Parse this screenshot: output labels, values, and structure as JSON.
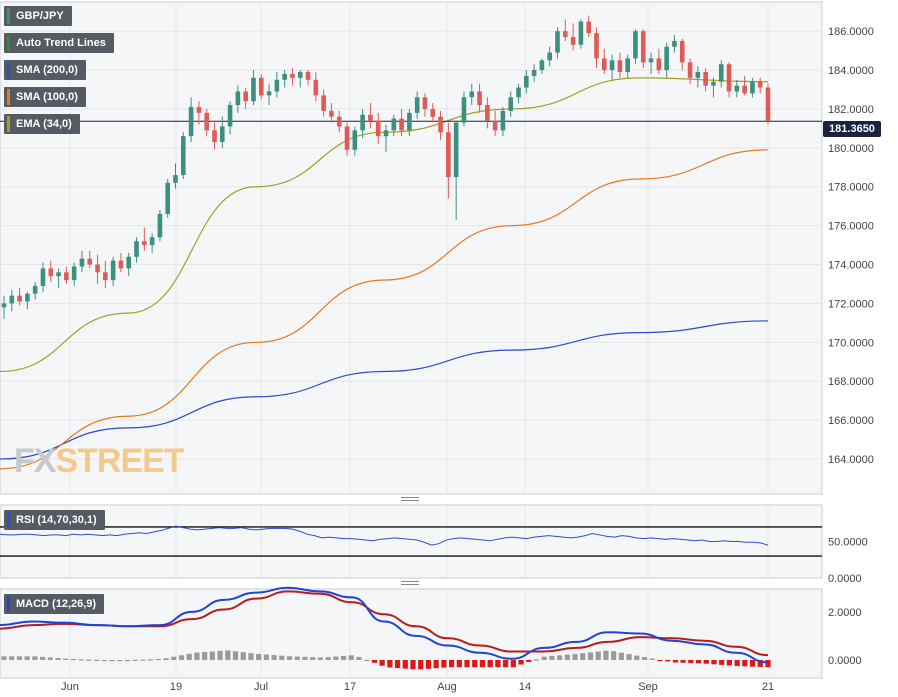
{
  "legend": {
    "symbol": "GBP/JPY",
    "trend": "Auto Trend Lines",
    "sma200": "SMA (200,0)",
    "sma100": "SMA (100,0)",
    "ema34": "EMA (34,0)"
  },
  "rsi_label": "RSI (14,70,30,1)",
  "macd_label": "MACD (12,26,9)",
  "price_badge": "181.3650",
  "logo": {
    "part1": "FX",
    "part2": "STREET"
  },
  "colors": {
    "up": "#3d8f7f",
    "down": "#e05a57",
    "sma200": "#2f4bd1",
    "sma100": "#e8781f",
    "ema34": "#a3a027",
    "trend": "#2e8b3e",
    "rsi": "#2f4bd1",
    "macd": "#1f44d6",
    "signal": "#b81c1c",
    "hist_pos": "#9a9a9a",
    "hist_neg": "#e01515",
    "grid": "#e4e6ea",
    "bg": "#f5f6f8"
  },
  "chart_data": [
    {
      "type": "candlestick",
      "title": "GBP/JPY",
      "y_ticks": [
        "186.0000",
        "184.0000",
        "182.0000",
        "180.0000",
        "178.0000",
        "176.0000",
        "174.0000",
        "172.0000",
        "170.0000",
        "168.0000",
        "166.0000",
        "164.0000"
      ],
      "ylim": [
        162.2,
        187.5
      ],
      "x_ticks": [
        "Jun",
        "19",
        "Jul",
        "17",
        "Aug",
        "14",
        "Sep",
        "21"
      ],
      "last_price": 181.365,
      "candles": [
        [
          171.8,
          172.4,
          171.2,
          172.0
        ],
        [
          172.0,
          172.7,
          171.6,
          172.4
        ],
        [
          172.4,
          172.8,
          171.9,
          172.1
        ],
        [
          172.1,
          172.6,
          171.7,
          172.5
        ],
        [
          172.5,
          173.1,
          172.2,
          172.9
        ],
        [
          172.9,
          174.1,
          172.6,
          173.8
        ],
        [
          173.8,
          174.2,
          173.1,
          173.4
        ],
        [
          173.4,
          173.8,
          172.8,
          173.6
        ],
        [
          173.6,
          173.9,
          173.0,
          173.2
        ],
        [
          173.2,
          174.1,
          172.9,
          173.9
        ],
        [
          173.9,
          174.7,
          173.6,
          174.3
        ],
        [
          174.3,
          174.7,
          173.8,
          174.0
        ],
        [
          174.0,
          174.5,
          173.0,
          173.6
        ],
        [
          173.6,
          174.2,
          172.8,
          173.2
        ],
        [
          173.2,
          174.4,
          172.9,
          174.2
        ],
        [
          174.2,
          174.6,
          173.6,
          173.8
        ],
        [
          173.8,
          174.6,
          173.4,
          174.4
        ],
        [
          174.4,
          175.4,
          174.1,
          175.2
        ],
        [
          175.2,
          175.9,
          174.7,
          175.0
        ],
        [
          175.0,
          175.6,
          174.6,
          175.4
        ],
        [
          175.4,
          176.8,
          175.2,
          176.6
        ],
        [
          176.6,
          178.4,
          176.4,
          178.2
        ],
        [
          178.2,
          179.2,
          177.9,
          178.6
        ],
        [
          178.6,
          180.8,
          178.4,
          180.6
        ],
        [
          180.6,
          182.6,
          180.3,
          182.1
        ],
        [
          182.1,
          182.4,
          181.2,
          181.8
        ],
        [
          181.8,
          182.0,
          180.6,
          180.9
        ],
        [
          180.9,
          181.3,
          179.9,
          180.3
        ],
        [
          180.3,
          181.6,
          180.0,
          181.1
        ],
        [
          181.1,
          182.4,
          180.7,
          182.2
        ],
        [
          182.2,
          183.2,
          181.8,
          182.9
        ],
        [
          182.9,
          183.1,
          182.0,
          182.4
        ],
        [
          182.4,
          184.0,
          182.2,
          183.6
        ],
        [
          183.6,
          183.8,
          182.5,
          182.7
        ],
        [
          182.7,
          183.3,
          182.2,
          182.9
        ],
        [
          182.9,
          183.9,
          182.6,
          183.5
        ],
        [
          183.5,
          184.0,
          183.1,
          183.8
        ],
        [
          183.8,
          184.1,
          183.2,
          183.6
        ],
        [
          183.6,
          184.0,
          183.1,
          183.9
        ],
        [
          183.9,
          184.0,
          183.2,
          183.5
        ],
        [
          183.5,
          183.9,
          182.4,
          182.7
        ],
        [
          182.7,
          183.0,
          181.6,
          181.9
        ],
        [
          181.9,
          182.3,
          181.3,
          181.6
        ],
        [
          181.6,
          181.9,
          180.8,
          181.1
        ],
        [
          181.1,
          181.3,
          179.6,
          179.9
        ],
        [
          179.9,
          181.1,
          179.6,
          180.9
        ],
        [
          180.9,
          182.0,
          180.5,
          181.7
        ],
        [
          181.7,
          182.3,
          181.0,
          181.4
        ],
        [
          181.4,
          181.8,
          180.2,
          180.6
        ],
        [
          180.6,
          181.2,
          179.8,
          180.9
        ],
        [
          180.9,
          181.7,
          180.6,
          181.5
        ],
        [
          181.5,
          182.0,
          180.6,
          180.9
        ],
        [
          180.9,
          182.0,
          180.6,
          181.8
        ],
        [
          181.8,
          182.9,
          181.5,
          182.6
        ],
        [
          182.6,
          182.8,
          181.6,
          182.0
        ],
        [
          182.0,
          182.3,
          181.3,
          181.6
        ],
        [
          181.6,
          181.9,
          180.4,
          180.8
        ],
        [
          180.8,
          181.3,
          177.4,
          178.5
        ],
        [
          178.5,
          181.4,
          176.3,
          181.3
        ],
        [
          181.3,
          182.9,
          181.1,
          182.6
        ],
        [
          182.6,
          183.3,
          182.2,
          182.9
        ],
        [
          182.9,
          183.3,
          181.8,
          182.2
        ],
        [
          182.2,
          182.6,
          181.0,
          181.4
        ],
        [
          181.4,
          181.9,
          180.6,
          180.9
        ],
        [
          180.9,
          182.1,
          180.6,
          181.9
        ],
        [
          181.9,
          182.9,
          181.6,
          182.6
        ],
        [
          182.6,
          183.3,
          182.3,
          183.1
        ],
        [
          183.1,
          184.0,
          182.8,
          183.7
        ],
        [
          183.7,
          184.3,
          183.4,
          184.0
        ],
        [
          184.0,
          184.6,
          183.8,
          184.5
        ],
        [
          184.5,
          185.2,
          184.2,
          184.9
        ],
        [
          184.9,
          186.2,
          184.6,
          186.0
        ],
        [
          186.0,
          186.6,
          185.5,
          185.7
        ],
        [
          185.7,
          186.4,
          185.0,
          185.3
        ],
        [
          185.3,
          186.6,
          185.1,
          186.5
        ],
        [
          186.5,
          186.8,
          185.7,
          185.9
        ],
        [
          185.9,
          186.2,
          184.1,
          184.6
        ],
        [
          184.6,
          185.1,
          183.8,
          184.0
        ],
        [
          184.0,
          184.8,
          183.5,
          184.5
        ],
        [
          184.5,
          184.9,
          183.6,
          183.9
        ],
        [
          183.9,
          184.8,
          183.6,
          184.6
        ],
        [
          184.6,
          186.1,
          184.3,
          186.0
        ],
        [
          186.0,
          186.1,
          184.1,
          184.4
        ],
        [
          184.4,
          184.9,
          183.8,
          184.6
        ],
        [
          184.6,
          185.1,
          183.8,
          184.0
        ],
        [
          184.0,
          185.4,
          183.6,
          185.2
        ],
        [
          185.2,
          185.8,
          184.9,
          185.5
        ],
        [
          185.5,
          185.6,
          184.0,
          184.4
        ],
        [
          184.4,
          184.6,
          183.3,
          183.6
        ],
        [
          183.6,
          184.2,
          183.1,
          183.9
        ],
        [
          183.9,
          184.1,
          182.9,
          183.2
        ],
        [
          183.2,
          183.6,
          182.6,
          183.4
        ],
        [
          183.4,
          184.5,
          183.1,
          184.3
        ],
        [
          184.3,
          184.4,
          182.6,
          182.9
        ],
        [
          182.9,
          183.5,
          182.6,
          183.2
        ],
        [
          183.2,
          183.7,
          182.7,
          182.8
        ],
        [
          182.8,
          183.6,
          182.6,
          183.4
        ],
        [
          183.4,
          183.6,
          182.8,
          183.1
        ],
        [
          183.1,
          183.3,
          181.2,
          181.4
        ]
      ],
      "series": [
        {
          "name": "SMA (200,0)",
          "values": [
            164.0,
            165.6,
            167.2,
            168.5,
            169.6,
            170.5,
            171.1
          ]
        },
        {
          "name": "SMA (100,0)",
          "values": [
            163.5,
            166.2,
            170.0,
            173.2,
            176.0,
            178.4,
            179.9
          ]
        },
        {
          "name": "EMA (34,0)",
          "values": [
            168.5,
            171.5,
            178.0,
            180.8,
            182.0,
            183.6,
            183.4
          ]
        }
      ]
    },
    {
      "type": "line",
      "title": "RSI (14,70,30,1)",
      "y_ticks": [
        "50.0000",
        "0.0000"
      ],
      "ylim": [
        0,
        100
      ],
      "overbought": 70,
      "oversold": 30,
      "values": [
        60,
        59,
        59,
        60,
        60,
        59,
        58,
        59,
        59,
        58,
        60,
        59,
        60,
        59,
        58,
        59,
        58,
        60,
        61,
        62,
        61,
        63,
        65,
        68,
        71,
        69,
        67,
        66,
        67,
        68,
        69,
        68,
        68,
        69,
        67,
        66,
        67,
        68,
        68,
        68,
        67,
        64,
        60,
        58,
        55,
        56,
        55,
        54,
        54,
        53,
        52,
        51,
        53,
        54,
        55,
        54,
        53,
        52,
        49,
        45,
        47,
        52,
        54,
        55,
        54,
        53,
        52,
        51,
        53,
        55,
        56,
        55,
        54,
        56,
        57,
        58,
        57,
        56,
        55,
        56,
        58,
        61,
        59,
        57,
        56,
        58,
        57,
        55,
        54,
        55,
        54,
        53,
        54,
        53,
        52,
        51,
        52,
        50,
        50,
        51,
        50,
        50,
        49,
        49,
        48,
        45
      ]
    },
    {
      "type": "bar",
      "title": "MACD (12,26,9)",
      "y_ticks": [
        "2.0000",
        "0.0000"
      ],
      "ylim": [
        -0.75,
        2.95
      ],
      "series": [
        {
          "name": "MACD",
          "values": [
            1.45,
            1.6,
            1.55,
            1.45,
            1.4,
            1.45,
            2.0,
            2.5,
            2.8,
            3.0,
            2.85,
            2.6,
            1.6,
            1.0,
            0.6,
            0.3,
            0.05,
            0.5,
            0.75,
            1.15,
            1.1,
            0.8,
            0.65,
            0.3,
            -0.1
          ]
        },
        {
          "name": "Signal",
          "values": [
            1.3,
            1.45,
            1.5,
            1.45,
            1.4,
            1.4,
            1.7,
            2.1,
            2.55,
            2.85,
            2.75,
            2.4,
            1.9,
            1.4,
            0.9,
            0.6,
            0.35,
            0.35,
            0.5,
            0.75,
            0.95,
            0.9,
            0.8,
            0.55,
            0.2
          ]
        },
        {
          "name": "Histogram",
          "values": [
            0.15,
            0.15,
            0.05,
            0.0,
            0.0,
            0.05,
            0.3,
            0.4,
            0.25,
            0.15,
            0.1,
            0.2,
            -0.3,
            -0.4,
            -0.3,
            -0.3,
            -0.3,
            0.15,
            0.25,
            0.4,
            0.15,
            -0.1,
            -0.15,
            -0.25,
            -0.3
          ]
        }
      ]
    }
  ]
}
